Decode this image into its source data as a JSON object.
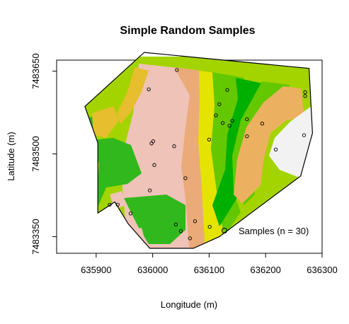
{
  "chart_data": {
    "type": "scatter",
    "title": "Simple Random Samples",
    "xlabel": "Longitude (m)",
    "ylabel": "Latitude (m)",
    "xlim": [
      635830,
      636300
    ],
    "ylim": [
      7483320,
      7483670
    ],
    "xticks": [
      635900,
      636000,
      636100,
      636200,
      636300
    ],
    "yticks": [
      7483350,
      7483500,
      7483650
    ],
    "legend": {
      "label": "Samples (n = 30)",
      "position": "bottom-right"
    },
    "colors": {
      "zone_dark_green": "#31b81c",
      "zone_mid_green": "#64c800",
      "zone_light_green": "#a4d400",
      "zone_yellow": "#e4e400",
      "zone_ochre": "#e6be2e",
      "zone_tan": "#eaab78",
      "zone_pink": "#efc3b7",
      "zone_light_gray": "#f2f2f2",
      "zone_green_strip": "#00b000",
      "zone_orange": "#ecb160"
    },
    "boundary": [
      [
        635880,
        7483586
      ],
      [
        635985,
        7483684
      ],
      [
        636277,
        7483655
      ],
      [
        636283,
        7483538
      ],
      [
        636262,
        7483460
      ],
      [
        636118,
        7483350
      ],
      [
        636072,
        7483329
      ],
      [
        635995,
        7483329
      ],
      [
        635957,
        7483373
      ],
      [
        635933,
        7483413
      ],
      [
        635903,
        7483393
      ],
      [
        635903,
        7483520
      ],
      [
        635880,
        7483586
      ]
    ],
    "series": [
      {
        "x": [
          636043,
          635993,
          636132,
          636167,
          636270,
          636270,
          636118,
          636112,
          636194,
          636167,
          636124,
          636141,
          636136,
          636100,
          636268,
          636001,
          635998,
          636038,
          636218,
          636003,
          636058,
          635995,
          635924,
          635938,
          635961,
          636050,
          636041,
          636075,
          636101,
          636066
        ],
        "y": [
          7483652,
          7483617,
          7483616,
          7483563,
          7483612,
          7483605,
          7483590,
          7483570,
          7483555,
          7483532,
          7483556,
          7483560,
          7483551,
          7483526,
          7483534,
          7483523,
          7483519,
          7483514,
          7483508,
          7483480,
          7483456,
          7483434,
          7483408,
          7483408,
          7483392,
          7483360,
          7483372,
          7483378,
          7483368,
          7483347
        ]
      }
    ]
  }
}
